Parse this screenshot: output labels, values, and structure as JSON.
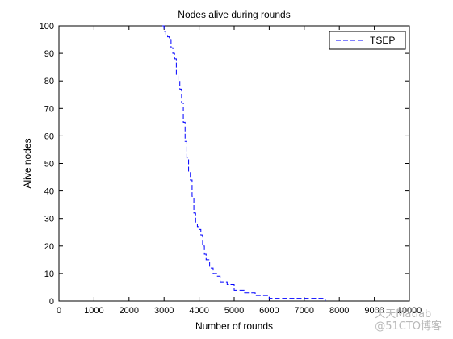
{
  "chart_data": {
    "type": "line",
    "title": "Nodes alive during rounds",
    "xlabel": "Number of rounds",
    "ylabel": "Alive nodes",
    "xlim": [
      0,
      10000
    ],
    "ylim": [
      0,
      100
    ],
    "xticks": [
      0,
      1000,
      2000,
      3000,
      4000,
      5000,
      6000,
      7000,
      8000,
      9000,
      10000
    ],
    "yticks": [
      0,
      10,
      20,
      30,
      40,
      50,
      60,
      70,
      80,
      90,
      100
    ],
    "grid": false,
    "legend_position": "top-right",
    "series": [
      {
        "name": "TSEP",
        "color": "#0000ff",
        "line_style": "dashed",
        "x": [
          2950,
          3000,
          3050,
          3100,
          3150,
          3200,
          3250,
          3300,
          3350,
          3400,
          3450,
          3500,
          3550,
          3600,
          3650,
          3700,
          3750,
          3800,
          3850,
          3900,
          3950,
          4000,
          4050,
          4100,
          4150,
          4200,
          4300,
          4400,
          4500,
          4600,
          4800,
          5000,
          5300,
          5600,
          6000,
          6500,
          7000,
          7600
        ],
        "y": [
          100,
          98,
          97,
          96,
          95,
          92,
          90,
          88,
          82,
          80,
          77,
          72,
          65,
          58,
          52,
          47,
          44,
          38,
          32,
          28,
          27,
          26,
          24,
          20,
          17,
          15,
          12,
          10,
          9,
          7,
          6,
          4,
          3,
          2,
          1,
          1,
          1,
          0
        ]
      }
    ]
  },
  "watermark": {
    "line1": "天天Matlab",
    "line2": "@51CTO博客"
  }
}
